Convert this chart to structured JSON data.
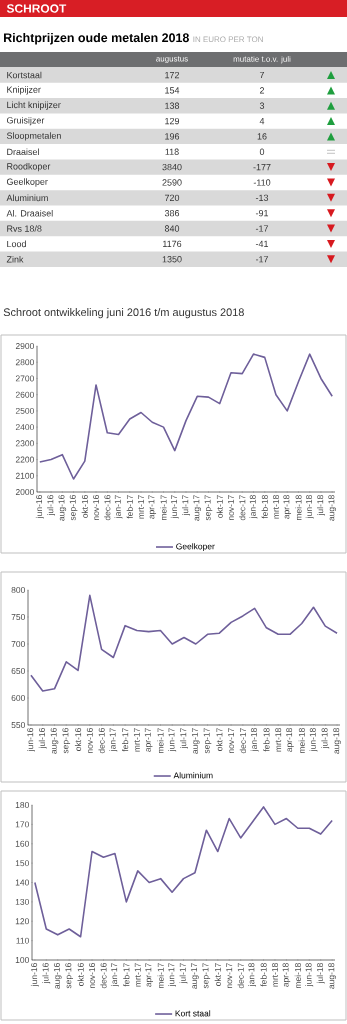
{
  "chart_data": [
    {
      "type": "other",
      "title": "Richtprijzen oude metalen 2018",
      "subtitle": "IN EURO PER TON",
      "annotations": [
        "SCHROOT"
      ],
      "categories": [
        "Kortstaal",
        "Knipijzer",
        "Licht knipijzer",
        "Gruisijzer",
        "Sloopmetalen",
        "Draaisel",
        "Roodkoper",
        "Geelkoper",
        "Aluminium",
        "Al. Draaisel",
        "Rvs 18/8",
        "Lood",
        "Zink"
      ],
      "series": [
        {
          "name": "augustus",
          "values": [
            172,
            154,
            138,
            129,
            196,
            118,
            3840,
            2590,
            720,
            386,
            840,
            1176,
            1350
          ]
        },
        {
          "name": "mutatie t.o.v. juli",
          "values": [
            7,
            2,
            3,
            4,
            16,
            0,
            -177,
            -110,
            -13,
            -91,
            -17,
            -41,
            -17
          ]
        }
      ],
      "data_labels": true
    },
    {
      "type": "line",
      "title": "Schroot ontwikkeling juni 2016 t/m augustus 2018",
      "categories": [
        "jun-16",
        "jul-16",
        "aug-16",
        "sep-16",
        "okt-16",
        "nov-16",
        "dec-16",
        "jan-17",
        "feb-17",
        "mrt-17",
        "apr-17",
        "mei-17",
        "jun-17",
        "jul-17",
        "aug-17",
        "sep-17",
        "okt-17",
        "nov-17",
        "dec-17",
        "jan-18",
        "feb-18",
        "mrt-18",
        "apr-18",
        "mei-18",
        "jun-18",
        "jul-18",
        "aug-18"
      ],
      "series": [
        {
          "name": "Geelkoper",
          "color": "#6e5f9a",
          "values": [
            2185,
            2200,
            2230,
            2080,
            2190,
            2660,
            2365,
            2355,
            2450,
            2490,
            2430,
            2400,
            2255,
            2440,
            2590,
            2585,
            2545,
            2735,
            2730,
            2850,
            2830,
            2600,
            2500,
            2680,
            2850,
            2700,
            2590
          ]
        }
      ],
      "ylim": [
        2000,
        2900
      ],
      "yticks": [
        2000,
        2100,
        2200,
        2300,
        2400,
        2500,
        2600,
        2700,
        2800,
        2900
      ],
      "legend": "bottom"
    },
    {
      "type": "line",
      "categories": [
        "jun-16",
        "jul-16",
        "aug-16",
        "sep-16",
        "okt-16",
        "nov-16",
        "dec-16",
        "jan-17",
        "feb-17",
        "mrt-17",
        "apr-17",
        "mei-17",
        "jun-17",
        "jul-17",
        "aug-17",
        "sep-17",
        "okt-17",
        "nov-17",
        "dec-17",
        "jan-18",
        "feb-18",
        "mrt-18",
        "apr-18",
        "mei-18",
        "jun-18",
        "jul-18",
        "aug-18"
      ],
      "series": [
        {
          "name": "Aluminium",
          "color": "#6e5f9a",
          "values": [
            642,
            613,
            617,
            667,
            651,
            790,
            690,
            675,
            734,
            725,
            723,
            725,
            700,
            712,
            700,
            718,
            720,
            740,
            752,
            766,
            730,
            718,
            718,
            738,
            768,
            733,
            720
          ]
        }
      ],
      "ylim": [
        550,
        800
      ],
      "yticks": [
        550,
        600,
        650,
        700,
        750,
        800
      ],
      "legend": "bottom"
    },
    {
      "type": "line",
      "categories": [
        "jun-16",
        "jul-16",
        "aug-16",
        "sep-16",
        "okt-16",
        "nov-16",
        "dec-16",
        "jan-17",
        "feb-17",
        "mrt-17",
        "apr-17",
        "mei-17",
        "jun-17",
        "jul-17",
        "aug-17",
        "sep-17",
        "okt-17",
        "nov-17",
        "dec-17",
        "jan-18",
        "feb-18",
        "mrt-18",
        "apr-18",
        "mei-18",
        "jun-18",
        "jul-18",
        "aug-18"
      ],
      "series": [
        {
          "name": "Kort staal",
          "color": "#6e5f9a",
          "values": [
            140,
            116,
            113,
            116,
            112,
            156,
            153,
            155,
            130,
            146,
            140,
            142,
            135,
            142,
            145,
            167,
            156,
            173,
            163,
            171,
            179,
            170,
            173,
            168,
            168,
            165,
            172
          ]
        }
      ],
      "ylim": [
        100,
        180
      ],
      "yticks": [
        100,
        110,
        120,
        130,
        140,
        150,
        160,
        170,
        180
      ],
      "legend": "bottom"
    }
  ]
}
